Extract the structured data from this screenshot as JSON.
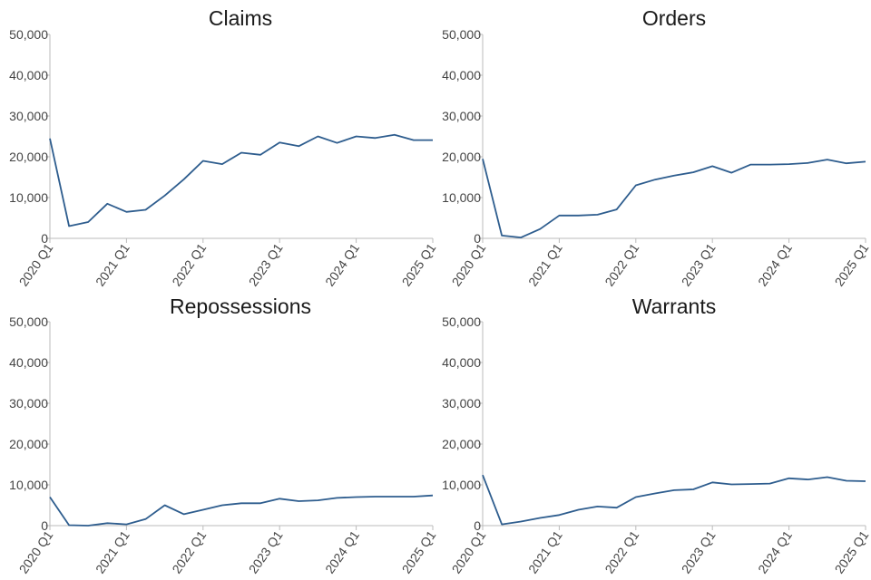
{
  "line_color": "#2e5d8e",
  "chart_data": [
    {
      "type": "line",
      "title": "Claims",
      "ylim": [
        0,
        50000
      ],
      "yticks": [
        "0",
        "10,000",
        "20,000",
        "30,000",
        "40,000",
        "50,000"
      ],
      "xticks": [
        "2020 Q1",
        "2021 Q1",
        "2022 Q1",
        "2023 Q1",
        "2024 Q1",
        "2025 Q1"
      ],
      "x": [
        "2020 Q1",
        "2020 Q2",
        "2020 Q3",
        "2020 Q4",
        "2021 Q1",
        "2021 Q2",
        "2021 Q3",
        "2021 Q4",
        "2022 Q1",
        "2022 Q2",
        "2022 Q3",
        "2022 Q4",
        "2023 Q1",
        "2023 Q2",
        "2023 Q3",
        "2023 Q4",
        "2024 Q1",
        "2024 Q2",
        "2024 Q3",
        "2024 Q4",
        "2025 Q1"
      ],
      "values": [
        24500,
        3000,
        4000,
        8500,
        6500,
        7000,
        10500,
        14500,
        19000,
        18200,
        21000,
        20500,
        23500,
        22600,
        25000,
        23400,
        25000,
        24600,
        25400,
        24100,
        24100
      ]
    },
    {
      "type": "line",
      "title": "Orders",
      "ylim": [
        0,
        50000
      ],
      "yticks": [
        "0",
        "10,000",
        "20,000",
        "30,000",
        "40,000",
        "50,000"
      ],
      "xticks": [
        "2020 Q1",
        "2021 Q1",
        "2022 Q1",
        "2023 Q1",
        "2024 Q1",
        "2025 Q1"
      ],
      "x": [
        "2020 Q1",
        "2020 Q2",
        "2020 Q3",
        "2020 Q4",
        "2021 Q1",
        "2021 Q2",
        "2021 Q3",
        "2021 Q4",
        "2022 Q1",
        "2022 Q2",
        "2022 Q3",
        "2022 Q4",
        "2023 Q1",
        "2023 Q2",
        "2023 Q3",
        "2023 Q4",
        "2024 Q1",
        "2024 Q2",
        "2024 Q3",
        "2024 Q4",
        "2025 Q1"
      ],
      "values": [
        19500,
        700,
        200,
        2300,
        5600,
        5600,
        5800,
        7100,
        13000,
        14400,
        15400,
        16200,
        17700,
        16100,
        18100,
        18100,
        18200,
        18500,
        19300,
        18400,
        18800
      ]
    },
    {
      "type": "line",
      "title": "Repossessions",
      "ylim": [
        0,
        50000
      ],
      "yticks": [
        "0",
        "10,000",
        "20,000",
        "30,000",
        "40,000",
        "50,000"
      ],
      "xticks": [
        "2020 Q1",
        "2021 Q1",
        "2022 Q1",
        "2023 Q1",
        "2024 Q1",
        "2025 Q1"
      ],
      "x": [
        "2020 Q1",
        "2020 Q2",
        "2020 Q3",
        "2020 Q4",
        "2021 Q1",
        "2021 Q2",
        "2021 Q3",
        "2021 Q4",
        "2022 Q1",
        "2022 Q2",
        "2022 Q3",
        "2022 Q4",
        "2023 Q1",
        "2023 Q2",
        "2023 Q3",
        "2023 Q4",
        "2024 Q1",
        "2024 Q2",
        "2024 Q3",
        "2024 Q4",
        "2025 Q1"
      ],
      "values": [
        7000,
        100,
        0,
        600,
        300,
        1600,
        5000,
        2800,
        3900,
        5000,
        5500,
        5500,
        6600,
        6000,
        6200,
        6800,
        7000,
        7100,
        7100,
        7100,
        7400
      ]
    },
    {
      "type": "line",
      "title": "Warrants",
      "ylim": [
        0,
        50000
      ],
      "yticks": [
        "0",
        "10,000",
        "20,000",
        "30,000",
        "40,000",
        "50,000"
      ],
      "xticks": [
        "2020 Q1",
        "2021 Q1",
        "2022 Q1",
        "2023 Q1",
        "2024 Q1",
        "2025 Q1"
      ],
      "x": [
        "2020 Q1",
        "2020 Q2",
        "2020 Q3",
        "2020 Q4",
        "2021 Q1",
        "2021 Q2",
        "2021 Q3",
        "2021 Q4",
        "2022 Q1",
        "2022 Q2",
        "2022 Q3",
        "2022 Q4",
        "2023 Q1",
        "2023 Q2",
        "2023 Q3",
        "2023 Q4",
        "2024 Q1",
        "2024 Q2",
        "2024 Q3",
        "2024 Q4",
        "2025 Q1"
      ],
      "values": [
        12400,
        300,
        1000,
        1900,
        2600,
        3900,
        4700,
        4400,
        7000,
        7900,
        8700,
        8900,
        10600,
        10100,
        10200,
        10300,
        11600,
        11300,
        11900,
        11000,
        10900
      ]
    }
  ]
}
